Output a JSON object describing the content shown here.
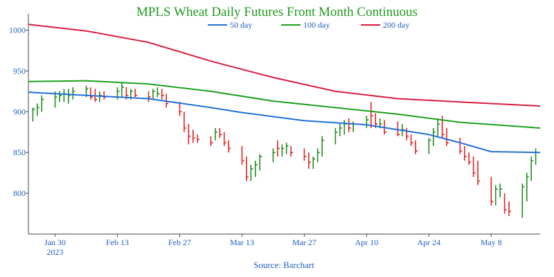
{
  "chart_data": {
    "type": "ohlc",
    "title": "MPLS Wheat Daily Futures Front Month Continuous",
    "source": "Source: Barchart",
    "xlabel": "",
    "ylabel": "",
    "ylim": [
      750,
      1020
    ],
    "grid": false,
    "legend_placement": "top-center",
    "colors": {
      "title": "#1f9a1f",
      "axis_text": "#1f5fbf",
      "up": "#1e8a1e",
      "down": "#e02020",
      "ma50": "#1f6fd6",
      "ma100": "#1aa01a",
      "ma200": "#d81b3c"
    },
    "y_ticks": [
      "800",
      "850",
      "900",
      "950",
      "1000"
    ],
    "x_ticks": [
      {
        "date": "2023-01-30",
        "label": "Jan 30",
        "sublabel": "2023"
      },
      {
        "date": "2023-02-13",
        "label": "Feb 13",
        "sublabel": ""
      },
      {
        "date": "2023-02-27",
        "label": "Feb 27",
        "sublabel": ""
      },
      {
        "date": "2023-03-13",
        "label": "Mar 13",
        "sublabel": ""
      },
      {
        "date": "2023-03-27",
        "label": "Mar 27",
        "sublabel": ""
      },
      {
        "date": "2023-04-10",
        "label": "Apr 10",
        "sublabel": ""
      },
      {
        "date": "2023-04-24",
        "label": "Apr 24",
        "sublabel": ""
      },
      {
        "date": "2023-05-08",
        "label": "May 8",
        "sublabel": ""
      }
    ],
    "x_range": [
      "2023-01-24",
      "2023-05-19"
    ],
    "series": [
      {
        "name": "50 day",
        "color_key": "ma50",
        "points": [
          [
            "2023-01-24",
            924
          ],
          [
            "2023-02-06",
            920
          ],
          [
            "2023-02-20",
            916
          ],
          [
            "2023-03-06",
            905
          ],
          [
            "2023-03-13",
            899
          ],
          [
            "2023-03-27",
            889
          ],
          [
            "2023-04-10",
            884
          ],
          [
            "2023-04-24",
            872
          ],
          [
            "2023-05-01",
            862
          ],
          [
            "2023-05-08",
            851
          ],
          [
            "2023-05-19",
            850
          ]
        ]
      },
      {
        "name": "100 day",
        "color_key": "ma100",
        "points": [
          [
            "2023-01-24",
            937
          ],
          [
            "2023-02-06",
            938
          ],
          [
            "2023-02-20",
            934
          ],
          [
            "2023-03-06",
            925
          ],
          [
            "2023-03-20",
            913
          ],
          [
            "2023-04-03",
            905
          ],
          [
            "2023-04-17",
            897
          ],
          [
            "2023-05-01",
            887
          ],
          [
            "2023-05-19",
            880
          ]
        ]
      },
      {
        "name": "200 day",
        "color_key": "ma200",
        "points": [
          [
            "2023-01-24",
            1007
          ],
          [
            "2023-02-06",
            999
          ],
          [
            "2023-02-20",
            985
          ],
          [
            "2023-03-06",
            962
          ],
          [
            "2023-03-20",
            942
          ],
          [
            "2023-04-03",
            925
          ],
          [
            "2023-04-17",
            916
          ],
          [
            "2023-05-01",
            912
          ],
          [
            "2023-05-19",
            907
          ]
        ]
      }
    ],
    "ohlc": [
      [
        "2023-01-25",
        888,
        905,
        903,
        "up"
      ],
      [
        "2023-01-26",
        895,
        910,
        905,
        "up"
      ],
      [
        "2023-01-27",
        900,
        920,
        915,
        "up"
      ],
      [
        "2023-01-30",
        905,
        925,
        918,
        "up"
      ],
      [
        "2023-01-31",
        912,
        925,
        920,
        "up"
      ],
      [
        "2023-02-01",
        912,
        928,
        922,
        "up"
      ],
      [
        "2023-02-02",
        910,
        928,
        920,
        "up"
      ],
      [
        "2023-02-03",
        915,
        930,
        925,
        "up"
      ],
      [
        "2023-02-06",
        918,
        932,
        928,
        "up"
      ],
      [
        "2023-02-07",
        915,
        930,
        918,
        "down"
      ],
      [
        "2023-02-08",
        912,
        928,
        915,
        "down"
      ],
      [
        "2023-02-09",
        912,
        925,
        920,
        "up"
      ],
      [
        "2023-02-10",
        915,
        925,
        918,
        "down"
      ],
      [
        "2023-02-13",
        915,
        930,
        925,
        "up"
      ],
      [
        "2023-02-14",
        918,
        935,
        930,
        "up"
      ],
      [
        "2023-02-15",
        915,
        930,
        920,
        "down"
      ],
      [
        "2023-02-16",
        915,
        928,
        925,
        "up"
      ],
      [
        "2023-02-17",
        918,
        928,
        920,
        "down"
      ],
      [
        "2023-02-20",
        912,
        925,
        918,
        "down"
      ],
      [
        "2023-02-21",
        915,
        928,
        925,
        "up"
      ],
      [
        "2023-02-22",
        918,
        930,
        922,
        "up"
      ],
      [
        "2023-02-23",
        915,
        928,
        920,
        "down"
      ],
      [
        "2023-02-24",
        905,
        922,
        910,
        "down"
      ],
      [
        "2023-02-27",
        895,
        912,
        900,
        "down"
      ],
      [
        "2023-02-28",
        875,
        900,
        880,
        "down"
      ],
      [
        "2023-03-01",
        860,
        885,
        870,
        "down"
      ],
      [
        "2023-03-02",
        862,
        878,
        868,
        "down"
      ],
      [
        "2023-03-03",
        862,
        872,
        866,
        "down"
      ],
      [
        "2023-03-06",
        858,
        870,
        862,
        "down"
      ],
      [
        "2023-03-07",
        865,
        880,
        875,
        "up"
      ],
      [
        "2023-03-08",
        868,
        880,
        872,
        "down"
      ],
      [
        "2023-03-09",
        858,
        875,
        862,
        "down"
      ],
      [
        "2023-03-10",
        850,
        865,
        855,
        "down"
      ],
      [
        "2023-03-13",
        835,
        858,
        840,
        "down"
      ],
      [
        "2023-03-14",
        815,
        845,
        820,
        "down"
      ],
      [
        "2023-03-15",
        815,
        835,
        830,
        "up"
      ],
      [
        "2023-03-16",
        820,
        840,
        835,
        "up"
      ],
      [
        "2023-03-17",
        828,
        848,
        845,
        "up"
      ],
      [
        "2023-03-20",
        838,
        855,
        850,
        "up"
      ],
      [
        "2023-03-21",
        845,
        865,
        855,
        "down"
      ],
      [
        "2023-03-22",
        845,
        860,
        855,
        "up"
      ],
      [
        "2023-03-23",
        848,
        862,
        858,
        "up"
      ],
      [
        "2023-03-24",
        845,
        858,
        850,
        "down"
      ],
      [
        "2023-03-27",
        840,
        855,
        845,
        "down"
      ],
      [
        "2023-03-28",
        830,
        850,
        838,
        "down"
      ],
      [
        "2023-03-29",
        830,
        845,
        842,
        "up"
      ],
      [
        "2023-03-30",
        838,
        855,
        850,
        "up"
      ],
      [
        "2023-03-31",
        845,
        870,
        865,
        "up"
      ],
      [
        "2023-04-03",
        860,
        880,
        875,
        "up"
      ],
      [
        "2023-04-04",
        870,
        885,
        880,
        "up"
      ],
      [
        "2023-04-05",
        872,
        890,
        885,
        "up"
      ],
      [
        "2023-04-06",
        875,
        892,
        880,
        "down"
      ],
      [
        "2023-04-07",
        875,
        888,
        885,
        "up"
      ],
      [
        "2023-04-10",
        880,
        895,
        890,
        "up"
      ],
      [
        "2023-04-11",
        880,
        912,
        895,
        "down"
      ],
      [
        "2023-04-12",
        880,
        898,
        885,
        "down"
      ],
      [
        "2023-04-13",
        880,
        892,
        885,
        "up"
      ],
      [
        "2023-04-14",
        872,
        890,
        875,
        "down"
      ],
      [
        "2023-04-17",
        870,
        888,
        872,
        "down"
      ],
      [
        "2023-04-18",
        870,
        885,
        878,
        "up"
      ],
      [
        "2023-04-19",
        865,
        880,
        870,
        "down"
      ],
      [
        "2023-04-20",
        858,
        872,
        862,
        "down"
      ],
      [
        "2023-04-21",
        848,
        865,
        852,
        "down"
      ],
      [
        "2023-04-24",
        848,
        868,
        865,
        "up"
      ],
      [
        "2023-04-25",
        858,
        880,
        875,
        "up"
      ],
      [
        "2023-04-26",
        870,
        892,
        885,
        "up"
      ],
      [
        "2023-04-27",
        868,
        895,
        872,
        "down"
      ],
      [
        "2023-04-28",
        858,
        880,
        862,
        "down"
      ],
      [
        "2023-05-01",
        848,
        868,
        852,
        "down"
      ],
      [
        "2023-05-02",
        840,
        858,
        845,
        "down"
      ],
      [
        "2023-05-03",
        835,
        850,
        838,
        "down"
      ],
      [
        "2023-05-04",
        820,
        845,
        825,
        "down"
      ],
      [
        "2023-05-05",
        810,
        840,
        815,
        "down"
      ],
      [
        "2023-05-08",
        785,
        820,
        790,
        "down"
      ],
      [
        "2023-05-09",
        785,
        810,
        805,
        "up"
      ],
      [
        "2023-05-10",
        795,
        812,
        805,
        "up"
      ],
      [
        "2023-05-11",
        775,
        800,
        780,
        "down"
      ],
      [
        "2023-05-12",
        772,
        790,
        778,
        "down"
      ],
      [
        "2023-05-15",
        770,
        812,
        808,
        "up"
      ],
      [
        "2023-05-16",
        790,
        825,
        820,
        "up"
      ],
      [
        "2023-05-17",
        815,
        845,
        840,
        "up"
      ],
      [
        "2023-05-18",
        835,
        855,
        850,
        "up"
      ]
    ]
  }
}
